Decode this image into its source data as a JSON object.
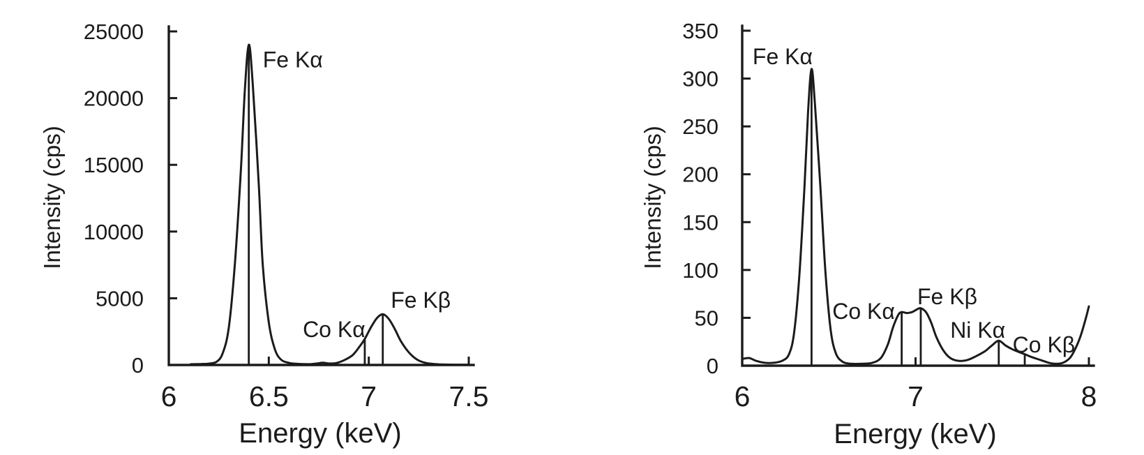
{
  "figure": {
    "background": "#ffffff",
    "ink": "#1b1b1b",
    "description": "Two X-ray fluorescence energy spectra"
  },
  "chart_data": [
    {
      "id": "left-spectrum",
      "type": "line",
      "title": "",
      "xlabel": "Energy (keV)",
      "ylabel": "Intensity (cps)",
      "xlim": [
        6,
        7.5
      ],
      "ylim": [
        0,
        25000
      ],
      "grid": false,
      "legend": "none",
      "x_ticks": [
        {
          "v": 6,
          "label": "6"
        },
        {
          "v": 6.5,
          "label": "6.5"
        },
        {
          "v": 7,
          "label": "7"
        },
        {
          "v": 7.5,
          "label": "7.5"
        }
      ],
      "y_ticks": [
        {
          "v": 0,
          "label": "0"
        },
        {
          "v": 5000,
          "label": "5000"
        },
        {
          "v": 10000,
          "label": "10000"
        },
        {
          "v": 15000,
          "label": "15000"
        },
        {
          "v": 20000,
          "label": "20000"
        },
        {
          "v": 25000,
          "label": "25000"
        }
      ],
      "series": [
        {
          "name": "spectrum",
          "points": [
            [
              6.11,
              60
            ],
            [
              6.16,
              75
            ],
            [
              6.2,
              100
            ],
            [
              6.24,
              250
            ],
            [
              6.27,
              900
            ],
            [
              6.3,
              2800
            ],
            [
              6.33,
              7500
            ],
            [
              6.36,
              14500
            ],
            [
              6.38,
              20500
            ],
            [
              6.4,
              24000
            ],
            [
              6.42,
              21000
            ],
            [
              6.45,
              13500
            ],
            [
              6.47,
              7500
            ],
            [
              6.5,
              3200
            ],
            [
              6.53,
              1200
            ],
            [
              6.56,
              420
            ],
            [
              6.6,
              160
            ],
            [
              6.65,
              80
            ],
            [
              6.7,
              60
            ],
            [
              6.74,
              110
            ],
            [
              6.77,
              170
            ],
            [
              6.8,
              110
            ],
            [
              6.84,
              150
            ],
            [
              6.88,
              380
            ],
            [
              6.92,
              750
            ],
            [
              6.95,
              1300
            ],
            [
              6.98,
              1950
            ],
            [
              7.01,
              2800
            ],
            [
              7.04,
              3500
            ],
            [
              7.07,
              3800
            ],
            [
              7.1,
              3450
            ],
            [
              7.13,
              2700
            ],
            [
              7.16,
              1800
            ],
            [
              7.2,
              950
            ],
            [
              7.24,
              420
            ],
            [
              7.28,
              170
            ],
            [
              7.33,
              70
            ],
            [
              7.39,
              30
            ],
            [
              7.45,
              20
            ],
            [
              7.5,
              20
            ]
          ]
        }
      ],
      "peak_markers": [
        {
          "x": 6.4,
          "y": 24000
        },
        {
          "x": 6.98,
          "y": 1900
        },
        {
          "x": 7.07,
          "y": 3800
        }
      ],
      "annotations": [
        {
          "text": "Fe Kα",
          "x": 6.47,
          "y": 22300
        },
        {
          "text": "Co Kα",
          "x": 6.67,
          "y": 2100
        },
        {
          "text": "Fe Kβ",
          "x": 7.11,
          "y": 4300
        }
      ]
    },
    {
      "id": "right-spectrum",
      "type": "line",
      "title": "",
      "xlabel": "Energy (keV)",
      "ylabel": "Intensity (cps)",
      "xlim": [
        6,
        8
      ],
      "ylim": [
        0,
        350
      ],
      "grid": false,
      "legend": "none",
      "x_ticks": [
        {
          "v": 6,
          "label": "6"
        },
        {
          "v": 7,
          "label": "7"
        },
        {
          "v": 8,
          "label": "8"
        }
      ],
      "y_ticks": [
        {
          "v": 0,
          "label": "0"
        },
        {
          "v": 50,
          "label": "50"
        },
        {
          "v": 100,
          "label": "100"
        },
        {
          "v": 150,
          "label": "150"
        },
        {
          "v": 200,
          "label": "200"
        },
        {
          "v": 250,
          "label": "250"
        },
        {
          "v": 300,
          "label": "300"
        },
        {
          "v": 350,
          "label": "350"
        }
      ],
      "series": [
        {
          "name": "spectrum",
          "points": [
            [
              6.0,
              7
            ],
            [
              6.04,
              8
            ],
            [
              6.08,
              5
            ],
            [
              6.13,
              3
            ],
            [
              6.18,
              3
            ],
            [
              6.23,
              5
            ],
            [
              6.27,
              12
            ],
            [
              6.3,
              35
            ],
            [
              6.33,
              95
            ],
            [
              6.36,
              190
            ],
            [
              6.38,
              265
            ],
            [
              6.4,
              310
            ],
            [
              6.42,
              272
            ],
            [
              6.45,
              190
            ],
            [
              6.48,
              98
            ],
            [
              6.51,
              38
            ],
            [
              6.54,
              13
            ],
            [
              6.58,
              4
            ],
            [
              6.63,
              2
            ],
            [
              6.69,
              2
            ],
            [
              6.75,
              3
            ],
            [
              6.8,
              8
            ],
            [
              6.84,
              22
            ],
            [
              6.87,
              40
            ],
            [
              6.9,
              53
            ],
            [
              6.92,
              56
            ],
            [
              6.95,
              55
            ],
            [
              6.98,
              56
            ],
            [
              7.01,
              59
            ],
            [
              7.03,
              60
            ],
            [
              7.06,
              56
            ],
            [
              7.09,
              45
            ],
            [
              7.12,
              30
            ],
            [
              7.16,
              16
            ],
            [
              7.2,
              8
            ],
            [
              7.25,
              5
            ],
            [
              7.3,
              6
            ],
            [
              7.35,
              10
            ],
            [
              7.4,
              15
            ],
            [
              7.44,
              21
            ],
            [
              7.48,
              26
            ],
            [
              7.52,
              21
            ],
            [
              7.56,
              17
            ],
            [
              7.6,
              14
            ],
            [
              7.63,
              12
            ],
            [
              7.67,
              9
            ],
            [
              7.72,
              6
            ],
            [
              7.77,
              3
            ],
            [
              7.81,
              2
            ],
            [
              7.85,
              3
            ],
            [
              7.89,
              8
            ],
            [
              7.92,
              17
            ],
            [
              7.95,
              30
            ],
            [
              7.98,
              48
            ],
            [
              8.0,
              62
            ]
          ]
        }
      ],
      "peak_markers": [
        {
          "x": 6.4,
          "y": 308
        },
        {
          "x": 6.92,
          "y": 56
        },
        {
          "x": 7.03,
          "y": 60
        },
        {
          "x": 7.48,
          "y": 26
        },
        {
          "x": 7.63,
          "y": 12
        }
      ],
      "annotations": [
        {
          "text": "Fe Kα",
          "x": 6.06,
          "y": 315
        },
        {
          "text": "Co Kα",
          "x": 6.52,
          "y": 49
        },
        {
          "text": "Fe Kβ",
          "x": 7.01,
          "y": 64
        },
        {
          "text": "Ni Kα",
          "x": 7.2,
          "y": 29
        },
        {
          "text": "Co Kβ",
          "x": 7.56,
          "y": 14
        }
      ]
    }
  ]
}
